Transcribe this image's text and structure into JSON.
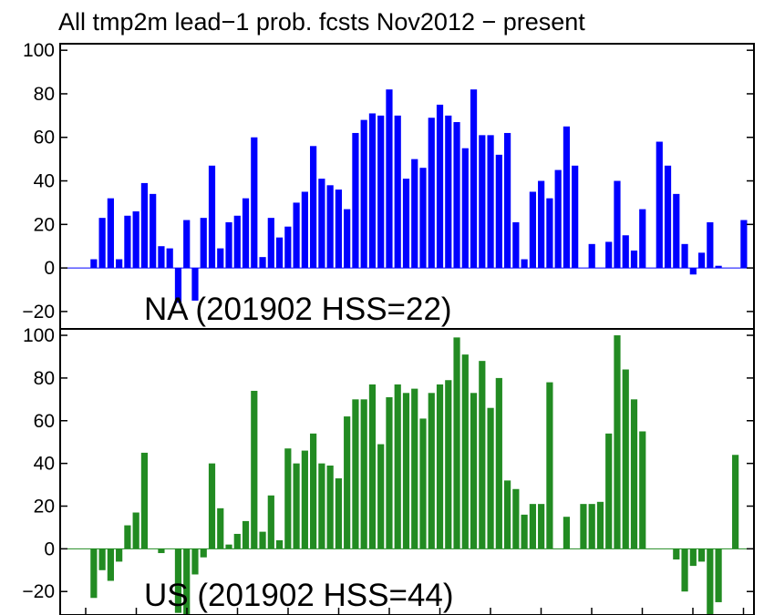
{
  "chart_data": {
    "type": "bar",
    "title": "All tmp2m lead−1 prob. fcsts Nov2012 − present",
    "panels": [
      {
        "label": "NA (201902 HSS=22)",
        "color": "#0000ff",
        "ylim": [
          -28,
          103
        ],
        "yticks": [
          -20,
          0,
          20,
          40,
          60,
          80,
          100
        ],
        "ytick_labels": [
          "−20",
          "0",
          "20",
          "40",
          "60",
          "80",
          "100"
        ],
        "values": [
          0,
          4,
          23,
          32,
          4,
          24,
          26,
          39,
          34,
          10,
          9,
          -16,
          22,
          -15,
          23,
          47,
          9,
          21,
          24,
          32,
          60,
          5,
          23,
          14,
          19,
          30,
          35,
          56,
          41,
          38,
          36,
          27,
          62,
          68,
          71,
          70,
          82,
          70,
          41,
          50,
          46,
          69,
          75,
          70,
          67,
          55,
          82,
          61,
          61,
          52,
          62,
          21,
          4,
          35,
          40,
          32,
          45,
          65,
          47,
          0,
          11,
          0,
          12,
          40,
          15,
          8,
          27,
          0,
          58,
          47,
          34,
          11,
          -3,
          7,
          21,
          1,
          0,
          0,
          22
        ]
      },
      {
        "label": "US (201902 HSS=44)",
        "color": "#228b22",
        "ylim": [
          -31,
          103
        ],
        "yticks": [
          -20,
          0,
          20,
          40,
          60,
          80,
          100
        ],
        "ytick_labels": [
          "−20",
          "0",
          "20",
          "40",
          "60",
          "80",
          "100"
        ],
        "values": [
          0,
          -23,
          -10,
          -15,
          -6,
          11,
          17,
          45,
          0,
          -2,
          0,
          -30,
          -31,
          -12,
          -4,
          40,
          19,
          2,
          7,
          13,
          74,
          8,
          25,
          4,
          47,
          40,
          46,
          54,
          40,
          39,
          33,
          62,
          70,
          70,
          77,
          49,
          71,
          77,
          73,
          75,
          61,
          73,
          77,
          79,
          99,
          91,
          73,
          88,
          66,
          80,
          32,
          28,
          16,
          21,
          21,
          78,
          0,
          15,
          0,
          21,
          21,
          22,
          54,
          100,
          84,
          70,
          55,
          0,
          0,
          0,
          -5,
          -20,
          -8,
          -6,
          -31,
          -25,
          0,
          44
        ]
      }
    ],
    "grid": false
  }
}
